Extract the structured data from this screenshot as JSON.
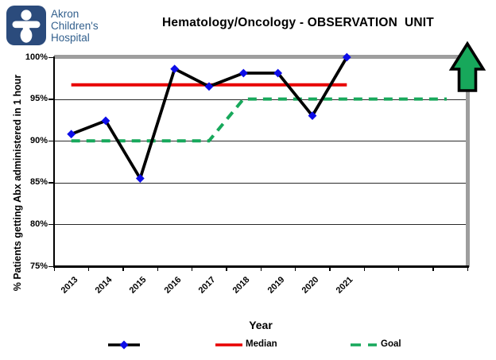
{
  "logo": {
    "alt": "Akron Children's Hospital",
    "lines": [
      "Akron",
      "Children's",
      "Hospital"
    ],
    "icon_color": "#2B4B7C",
    "text_color": "#33608D"
  },
  "header": {
    "title": "Hematology/Oncology - OBSERVATION  UNIT"
  },
  "chart_data": {
    "type": "line",
    "title": "Hematology/Oncology - OBSERVATION UNIT",
    "categories": [
      "2013",
      "2014",
      "2015",
      "2016",
      "2017",
      "2018",
      "2019",
      "2020",
      "2021"
    ],
    "category_slots": 12,
    "series": [
      {
        "name": "percent-abx-in-1-hour",
        "legend_label": "",
        "style": "solid-line-with-diamond-markers",
        "color": "#000000",
        "marker": "diamond",
        "marker_color": "#0D0DE8",
        "values": [
          90.8,
          92.4,
          85.5,
          98.6,
          96.5,
          98.1,
          98.1,
          93,
          100
        ]
      },
      {
        "name": "median",
        "legend_label": "Median",
        "style": "solid-line",
        "color": "#E80000",
        "value": 96.7,
        "span_categories": [
          0,
          8
        ]
      },
      {
        "name": "goal",
        "legend_label": "Goal",
        "style": "dashed-line",
        "color": "#17A85B",
        "points_cat_value": [
          [
            0,
            90
          ],
          [
            4,
            90
          ],
          [
            5,
            95
          ],
          [
            10.9,
            95
          ]
        ]
      }
    ],
    "xlabel": "Year",
    "ylabel": "% Patients getting Abx administered in 1 hour",
    "ylim": [
      75,
      100
    ],
    "ytick_values": [
      100,
      95,
      90,
      85,
      80,
      75
    ],
    "ytick_labels": [
      "100%",
      "95%",
      "90%",
      "85%",
      "80%",
      "75%"
    ],
    "grid": "horizontal-only",
    "legend_position": "bottom",
    "annotation": {
      "shape": "up-arrow",
      "fill": "#17A85B",
      "border": "#000000"
    }
  }
}
